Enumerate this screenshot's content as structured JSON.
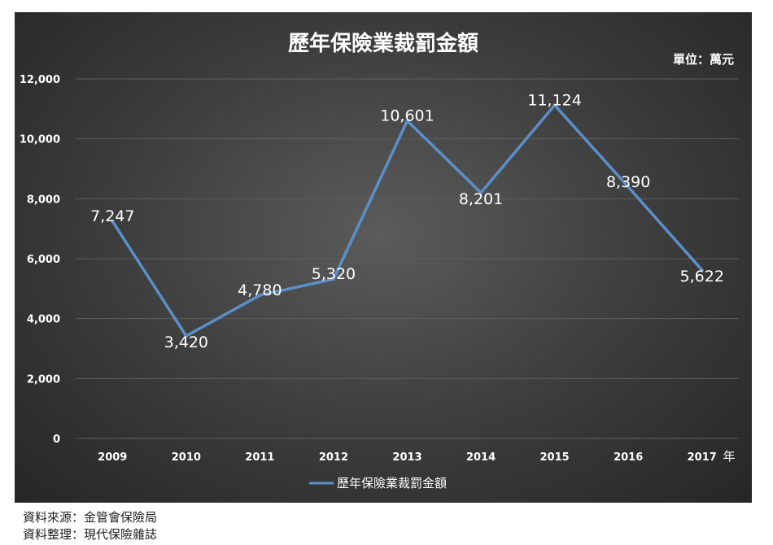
{
  "chart_data": {
    "type": "line",
    "title": "歷年保險業裁罰金額",
    "unit_note": "單位：萬元",
    "x_unit": "年",
    "categories": [
      "2009",
      "2010",
      "2011",
      "2012",
      "2013",
      "2014",
      "2015",
      "2016",
      "2017"
    ],
    "series": [
      {
        "name": "歷年保險業裁罰金額",
        "values": [
          7247,
          3420,
          4780,
          5320,
          10601,
          8201,
          11124,
          8390,
          5622
        ],
        "value_labels": [
          "7,247",
          "3,420",
          "4,780",
          "5,320",
          "10,601",
          "8,201",
          "11,124",
          "8,390",
          "5,622"
        ],
        "color": "#5b8fc9"
      }
    ],
    "ylim": [
      0,
      12000
    ],
    "yticks": [
      "0",
      "2,000",
      "4,000",
      "6,000",
      "8,000",
      "10,000",
      "12,000"
    ],
    "grid": true,
    "legend_position": "bottom"
  },
  "colors": {
    "panel_background": "#3b3b3b",
    "line": "#5b8fc9",
    "text": "#ffffff",
    "gridline": "#5e5e5e"
  },
  "footer": {
    "source": "資料來源：金管會保險局",
    "compiled_by": "資料整理：現代保險雜誌"
  }
}
